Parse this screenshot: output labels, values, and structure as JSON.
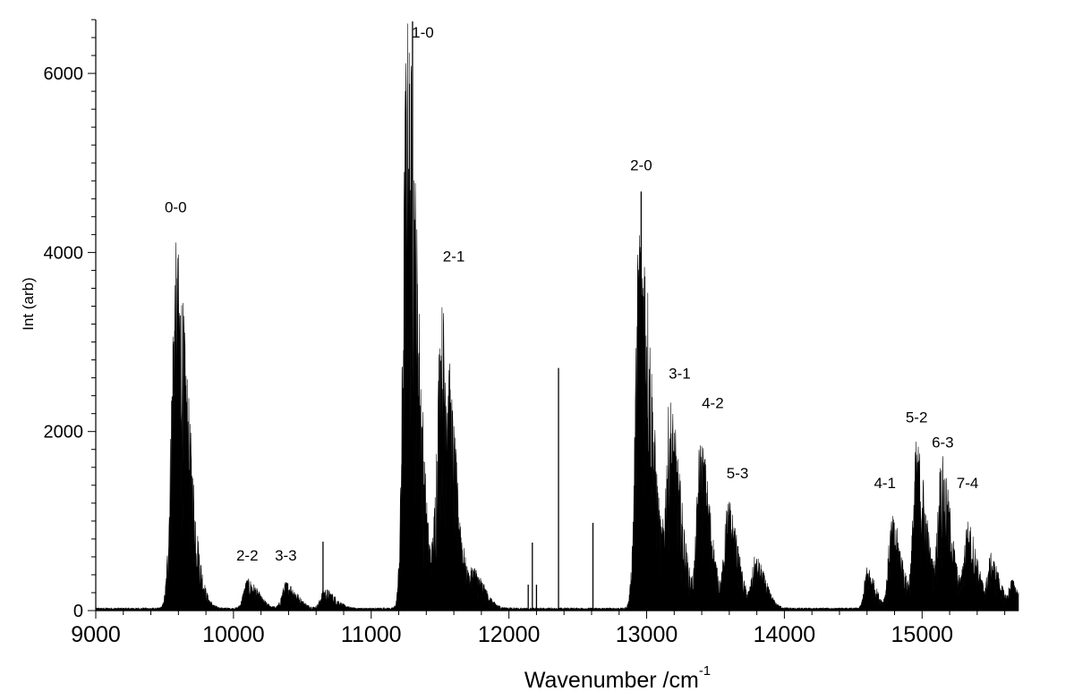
{
  "chart_data": {
    "type": "line",
    "title": "",
    "xlabel": "Wavenumber /cm",
    "xlabel_superscript": "-1",
    "ylabel": "Int (arb)",
    "xlim": [
      9000,
      15700
    ],
    "ylim": [
      0,
      6600
    ],
    "x_ticks": [
      9000,
      10000,
      11000,
      12000,
      13000,
      14000,
      15000
    ],
    "y_ticks": [
      0,
      2000,
      4000,
      6000
    ],
    "grid": false,
    "legend": "none",
    "line_color": "#000000",
    "bands": [
      {
        "label": "0-0",
        "center": 9580,
        "peak": 4100,
        "width": 70
      },
      {
        "label": "1-0",
        "center": 11260,
        "peak": 6650,
        "width": 60
      },
      {
        "label": "2-1",
        "center": 11510,
        "peak": 3420,
        "width": 70
      },
      {
        "label": "2-0",
        "center": 12950,
        "peak": 4680,
        "width": 65
      },
      {
        "label": "3-1",
        "center": 13170,
        "peak": 2230,
        "width": 60
      },
      {
        "label": "4-2",
        "center": 13390,
        "peak": 1900,
        "width": 55
      },
      {
        "label": "5-3",
        "center": 13590,
        "peak": 1200,
        "width": 55
      },
      {
        "label": "2-2",
        "center": 10100,
        "peak": 330,
        "width": 60
      },
      {
        "label": "3-3",
        "center": 10380,
        "peak": 300,
        "width": 60
      },
      {
        "label": "4-1",
        "center": 14780,
        "peak": 1030,
        "width": 55
      },
      {
        "label": "5-2",
        "center": 14960,
        "peak": 1850,
        "width": 55
      },
      {
        "label": "6-3",
        "center": 15140,
        "peak": 1660,
        "width": 55
      },
      {
        "label": "7-4",
        "center": 15330,
        "peak": 950,
        "width": 55
      }
    ],
    "minor_bands": [
      {
        "center": 10660,
        "peak": 220,
        "width": 60
      },
      {
        "center": 11750,
        "peak": 380,
        "width": 60
      },
      {
        "center": 13790,
        "peak": 570,
        "width": 55
      },
      {
        "center": 14600,
        "peak": 470,
        "width": 45
      },
      {
        "center": 15500,
        "peak": 560,
        "width": 50
      },
      {
        "center": 15650,
        "peak": 300,
        "width": 40
      }
    ],
    "sharp_lines": [
      {
        "x": 10650,
        "y": 770
      },
      {
        "x": 12140,
        "y": 290
      },
      {
        "x": 12170,
        "y": 760
      },
      {
        "x": 12200,
        "y": 290
      },
      {
        "x": 12360,
        "y": 2710
      },
      {
        "x": 12610,
        "y": 980
      },
      {
        "x": 12960,
        "y": 4680
      },
      {
        "x": 11300,
        "y": 6580
      }
    ],
    "annotations": [
      {
        "text": "0-0",
        "x": 9580,
        "y": 4450
      },
      {
        "text": "1-0",
        "x": 11375,
        "y": 6400
      },
      {
        "text": "2-1",
        "x": 11600,
        "y": 3900
      },
      {
        "text": "2-2",
        "x": 10100,
        "y": 560
      },
      {
        "text": "3-3",
        "x": 10380,
        "y": 560
      },
      {
        "text": "2-0",
        "x": 12960,
        "y": 4920
      },
      {
        "text": "3-1",
        "x": 13240,
        "y": 2590
      },
      {
        "text": "4-2",
        "x": 13480,
        "y": 2260
      },
      {
        "text": "5-3",
        "x": 13660,
        "y": 1480
      },
      {
        "text": "4-1",
        "x": 14730,
        "y": 1370
      },
      {
        "text": "5-2",
        "x": 14960,
        "y": 2100
      },
      {
        "text": "6-3",
        "x": 15150,
        "y": 1820
      },
      {
        "text": "7-4",
        "x": 15330,
        "y": 1370
      }
    ]
  }
}
